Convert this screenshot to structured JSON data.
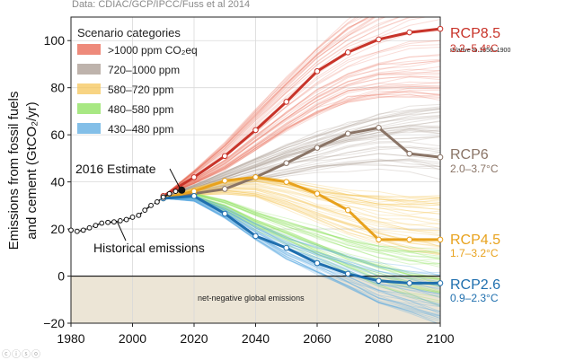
{
  "source": "Data: CDIAC/GCP/IPCC/Fuss et al 2014",
  "license_icons": "ⓒⓘⓢⓞ",
  "colors": {
    "rcp85": "#c8342a",
    "rcp6": "#8a7466",
    "rcp45": "#e8a21d",
    "rcp26": "#1f6fae",
    "negative_fill": "#ece5d6",
    "grid": "#d9d9d9"
  },
  "chart_data": {
    "type": "line",
    "ylabel": "Emissions from fossil fuels and cement (GtCO₂/yr)",
    "ylabel_line1": "Emissions from fossil fuels",
    "ylabel_line2": "and cement (GtCO₂/yr)",
    "xlim": [
      1980,
      2100
    ],
    "ylim": [
      -20,
      110
    ],
    "x_ticks": [
      "1980",
      "2000",
      "2020",
      "2040",
      "2060",
      "2080",
      "2100"
    ],
    "y_ticks": [
      "−20",
      "0",
      "20",
      "40",
      "60",
      "80",
      "100"
    ],
    "grid": true,
    "legend": {
      "title": "Scenario categories",
      "placement": "top-left",
      "items": [
        {
          "label": ">1000 ppm CO₂eq",
          "color": "#e8634f"
        },
        {
          "label": "720–1000 ppm",
          "color": "#a89a90"
        },
        {
          "label": "580–720 ppm",
          "color": "#f5c65a"
        },
        {
          "label": "480–580 ppm",
          "color": "#8be05a"
        },
        {
          "label": "430–480 ppm",
          "color": "#5aa9e0"
        }
      ]
    },
    "annotations": {
      "estimate": "2016 Estimate",
      "historical": "Historical emissions",
      "negative": "net-negative global emissions",
      "relative": "relative to 1850–1900"
    },
    "historical": {
      "x": [
        1980,
        1982,
        1984,
        1986,
        1988,
        1990,
        1992,
        1994,
        1996,
        1998,
        2000,
        2002,
        2004,
        2006,
        2008,
        2010,
        2012,
        2014,
        2016
      ],
      "y": [
        19.5,
        19.0,
        19.5,
        20.5,
        21.5,
        22.5,
        22.8,
        23.0,
        23.5,
        24.0,
        25.0,
        25.8,
        28.0,
        30.0,
        31.5,
        33.5,
        35.0,
        36.0,
        36.5
      ]
    },
    "series": [
      {
        "name": "RCP8.5",
        "range": "3.2–5.4°C",
        "color": "#c8342a",
        "x": [
          2010,
          2020,
          2030,
          2040,
          2050,
          2060,
          2070,
          2080,
          2090,
          2100
        ],
        "y": [
          34,
          42,
          51,
          62,
          74,
          87,
          95,
          100.5,
          103.5,
          105
        ]
      },
      {
        "name": "RCP6",
        "range": "2.0–3.7°C",
        "color": "#8a7466",
        "x": [
          2010,
          2020,
          2030,
          2040,
          2050,
          2060,
          2070,
          2080,
          2090,
          2100
        ],
        "y": [
          33.5,
          35,
          37,
          42,
          48,
          54.5,
          60.5,
          63,
          52,
          50.5
        ]
      },
      {
        "name": "RCP4.5",
        "range": "1.7–3.2°C",
        "color": "#e8a21d",
        "x": [
          2010,
          2020,
          2030,
          2040,
          2050,
          2060,
          2070,
          2080,
          2090,
          2100
        ],
        "y": [
          33,
          36,
          40.5,
          42,
          40,
          35,
          28,
          15.5,
          15.5,
          15.5
        ]
      },
      {
        "name": "RCP2.6",
        "range": "0.9–2.3°C",
        "color": "#1f6fae",
        "x": [
          2010,
          2020,
          2030,
          2040,
          2050,
          2060,
          2070,
          2080,
          2090,
          2100
        ],
        "y": [
          33,
          34,
          26.5,
          17,
          12,
          5.5,
          1,
          -2,
          -3,
          -3
        ]
      }
    ]
  }
}
